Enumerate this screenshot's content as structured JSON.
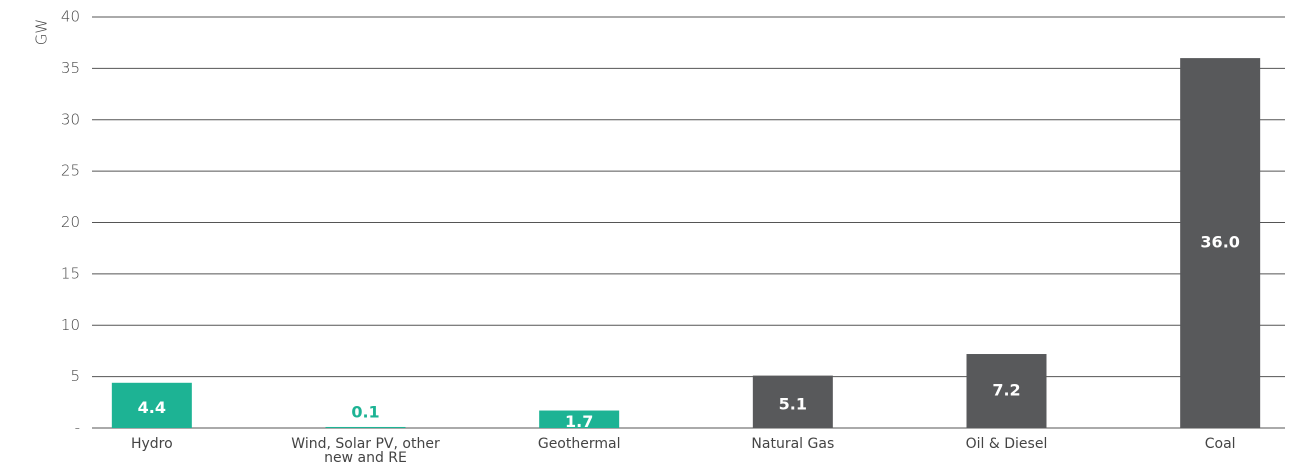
{
  "chart_data": {
    "type": "bar",
    "y_label": "GW",
    "categories": [
      "Hydro",
      "Wind, Solar PV, other new and RE",
      "Geothermal",
      "Natural Gas",
      "Oil & Diesel",
      "Coal"
    ],
    "values": [
      4.4,
      0.1,
      1.7,
      5.1,
      7.2,
      36.0
    ],
    "value_labels": [
      "4.4",
      "0.1",
      "1.7",
      "5.1",
      "7.2",
      "36.0"
    ],
    "colors": [
      "#1db394",
      "#1db394",
      "#1db394",
      "#58595b",
      "#58595b",
      "#58595b"
    ],
    "ylim": [
      0,
      40
    ],
    "yticks": [
      {
        "value": 0,
        "label": "-"
      },
      5,
      10,
      15,
      20,
      25,
      30,
      35,
      40
    ],
    "grid": true
  }
}
